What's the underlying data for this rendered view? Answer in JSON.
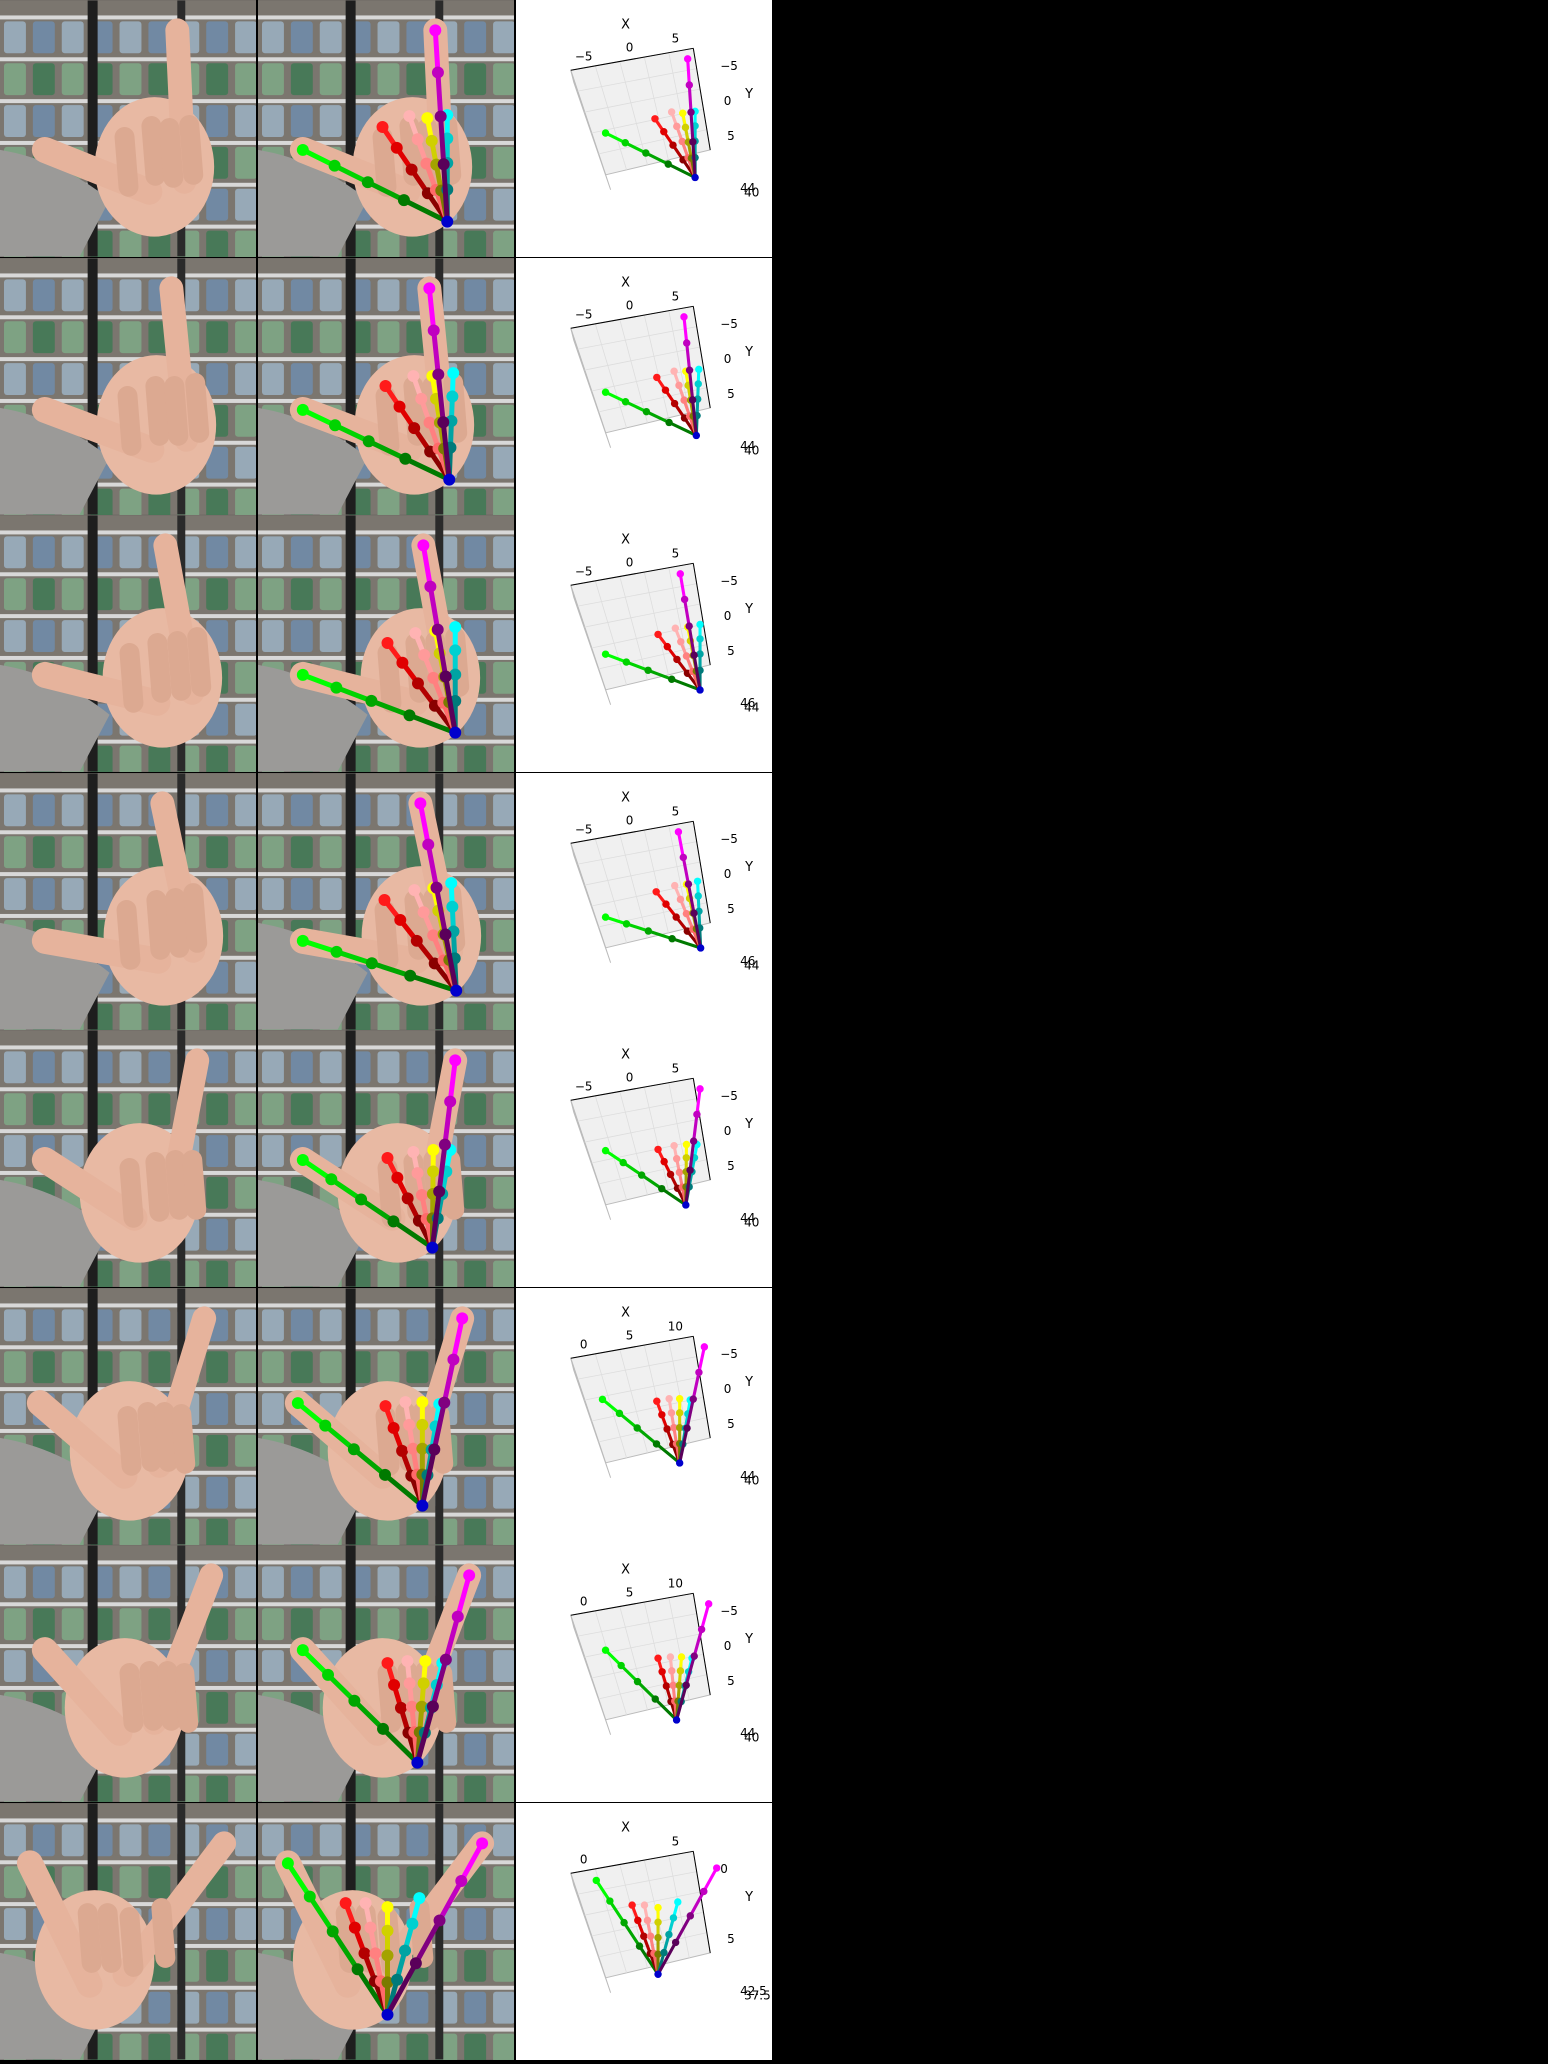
{
  "bone_colors": {
    "thumb": [
      "#007a00",
      "#00a600",
      "#00d400",
      "#00ff00"
    ],
    "index": [
      "#8a0000",
      "#b30000",
      "#e00000",
      "#ff1a1a"
    ],
    "middle": [
      "#ff6a6a",
      "#ff8080",
      "#ff9a9a",
      "#ffb3b3"
    ],
    "ring": [
      "#7a7a00",
      "#a3a300",
      "#d0d000",
      "#ffff00"
    ],
    "ring2": [
      "#007a7a",
      "#00a3a3",
      "#00d0d0",
      "#00ffff"
    ],
    "pinky": [
      "#5a005a",
      "#800080",
      "#c000c0",
      "#ff00ff"
    ],
    "wrist": "#0000cc"
  },
  "rows": [
    {
      "plot_text": {
        "axis_x": "X",
        "axis_y": "Y",
        "xticks": [
          "−5",
          "0",
          "5"
        ],
        "yticks": [
          "−5",
          "0",
          "5"
        ],
        "zticks": [
          "44",
          "40"
        ]
      }
    },
    {
      "plot_text": {
        "axis_x": "X",
        "axis_y": "Y",
        "xticks": [
          "−5",
          "0",
          "5"
        ],
        "yticks": [
          "−5",
          "0",
          "5"
        ],
        "zticks": [
          "44",
          "40"
        ]
      }
    },
    {
      "plot_text": {
        "axis_x": "X",
        "axis_y": "Y",
        "xticks": [
          "−5",
          "0",
          "5"
        ],
        "yticks": [
          "−5",
          "0",
          "5"
        ],
        "zticks": [
          "46",
          "44"
        ]
      }
    },
    {
      "plot_text": {
        "axis_x": "X",
        "axis_y": "Y",
        "xticks": [
          "−5",
          "0",
          "5"
        ],
        "yticks": [
          "−5",
          "0",
          "5"
        ],
        "zticks": [
          "46",
          "44"
        ]
      }
    },
    {
      "plot_text": {
        "axis_x": "X",
        "axis_y": "Y",
        "xticks": [
          "−5",
          "0",
          "5"
        ],
        "yticks": [
          "−5",
          "0",
          "5"
        ],
        "zticks": [
          "44",
          "40"
        ]
      }
    },
    {
      "plot_text": {
        "axis_x": "X",
        "axis_y": "Y",
        "xticks": [
          "0",
          "5",
          "10"
        ],
        "yticks": [
          "−5",
          "0",
          "5"
        ],
        "zticks": [
          "44",
          "40"
        ]
      }
    },
    {
      "plot_text": {
        "axis_x": "X",
        "axis_y": "Y",
        "xticks": [
          "0",
          "5",
          "10"
        ],
        "yticks": [
          "−5",
          "0",
          "5"
        ],
        "zticks": [
          "44",
          "40"
        ]
      }
    },
    {
      "plot_text": {
        "axis_x": "X",
        "axis_y": "Y",
        "xticks": [
          "0",
          "5"
        ],
        "yticks": [
          "0",
          "5"
        ],
        "zticks": [
          "42.5",
          "37.5"
        ]
      }
    }
  ]
}
